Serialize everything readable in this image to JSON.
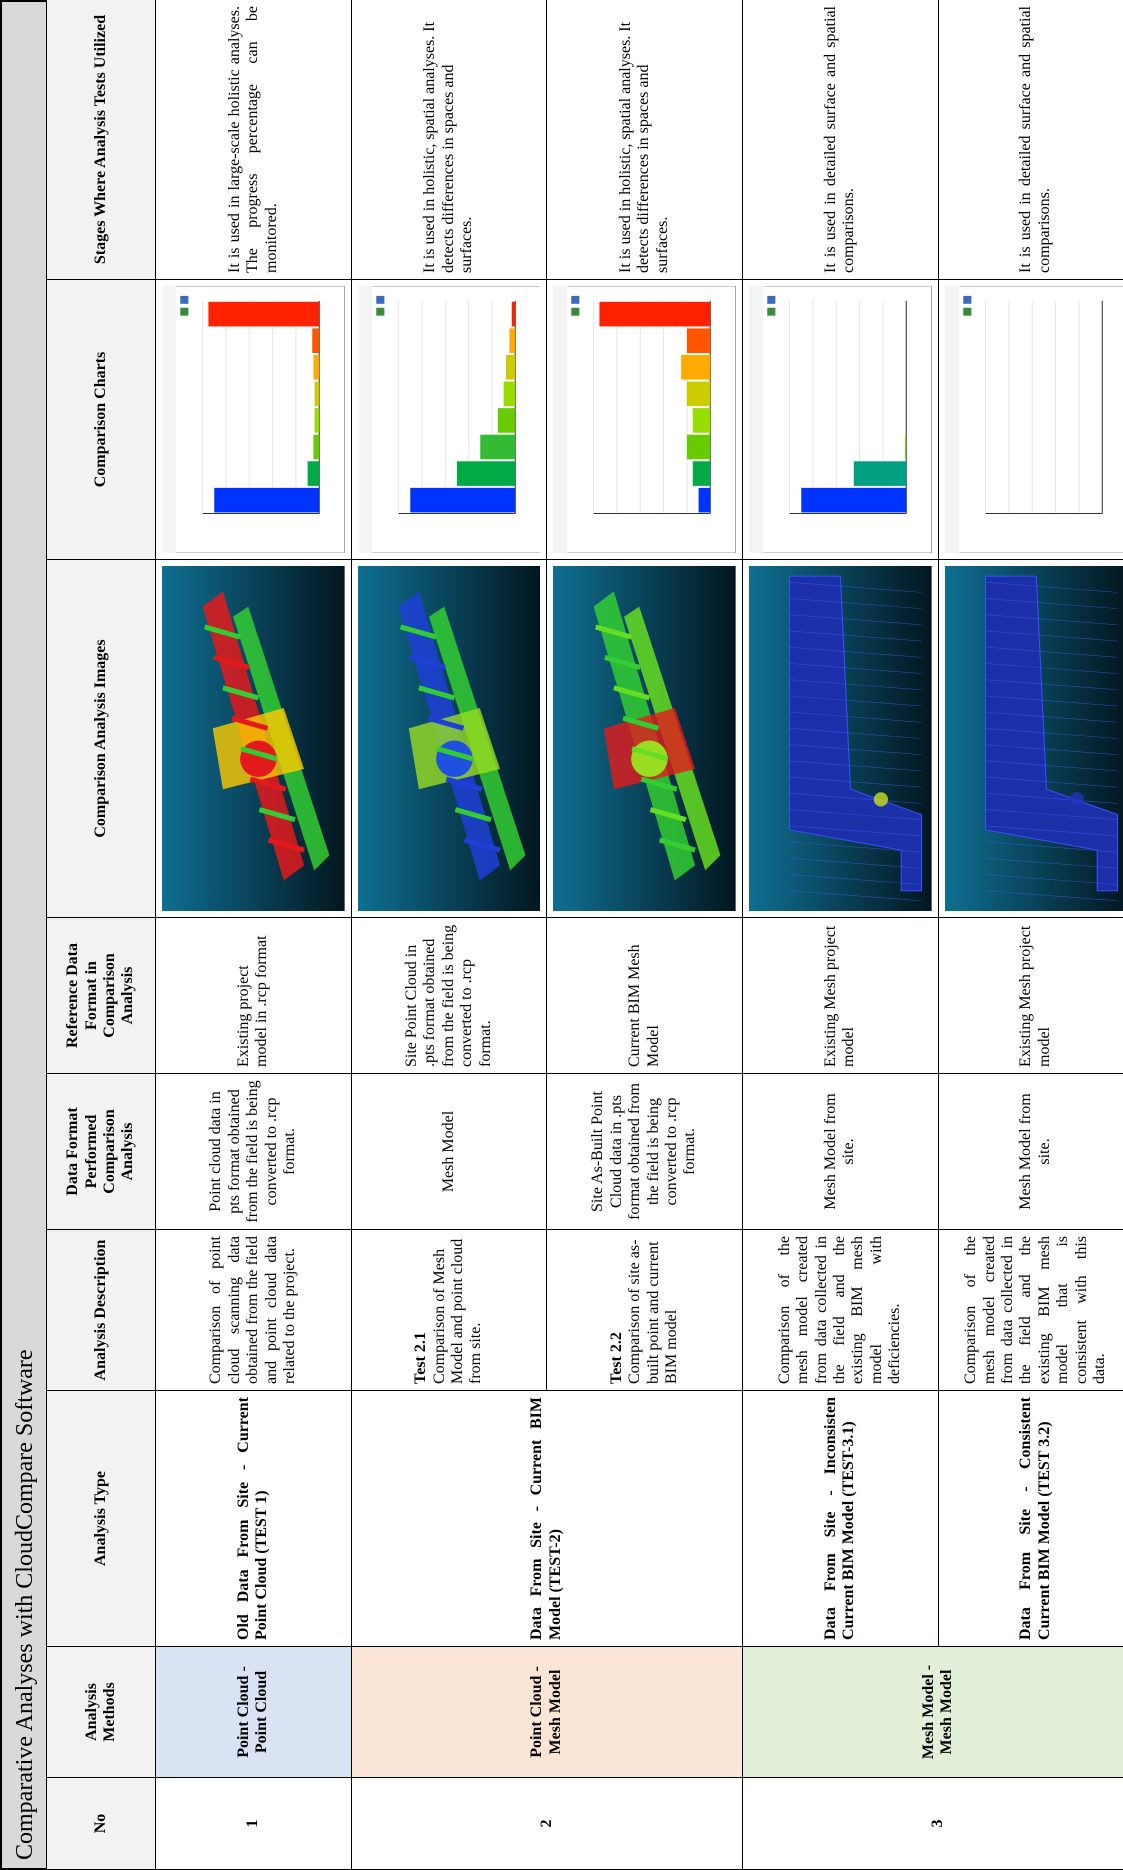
{
  "title": "Comparative Analyses with CloudCompare Software",
  "table": {
    "headers": [
      "No",
      "Analysis Methods",
      "Analysis Type",
      "Analysis Description",
      "Data Format Performed Comparison Analysis",
      "Reference Data Format in Comparison Analysis",
      "Comparison Analysis Images",
      "Comparison Charts",
      "Stages Where Analysis Tests Utilized"
    ],
    "rows": [
      {
        "no": "1",
        "method": "Point Cloud - Point Cloud",
        "parts": [
          {
            "type": "Old Data From Site - Current Point Cloud (TEST 1)",
            "description": "Comparison of point cloud scanning data obtained from the field and point cloud data related to the project.",
            "data_format": "Point cloud data in pts format obtained from the field is being converted to .rcp format.",
            "reference_format": "Existing project model in .rcp format",
            "stages": "It is used in large-scale holistic analyses. The progress percentage can be monitored."
          }
        ]
      },
      {
        "no": "2",
        "method": "Point Cloud - Mesh Model",
        "type": "Data From Site - Current BIM Model (TEST-2)",
        "parts": [
          {
            "test": "Test 2.1",
            "description": "Comparison of Mesh Model and point cloud from site.",
            "data_format": "Mesh Model",
            "reference_format": "Site Point Cloud in .pts format obtained from the field is being converted to .rcp format.",
            "stages": "It is used in holistic, spatial analyses. It detects differences in spaces and surfaces."
          },
          {
            "test": "Test 2.2",
            "description": "Comparison of site as-built point and current BIM model",
            "data_format": "Site As-Built Point Cloud data in .pts format obtained from the field is being converted to .rcp format.",
            "reference_format": "Current BIM Mesh Model",
            "stages": "It is used in holistic, spatial analyses. It detects differences in spaces and surfaces."
          }
        ]
      },
      {
        "no": "3",
        "method": "Mesh Model - Mesh Model",
        "parts": [
          {
            "type": "Data From Site - Inconsisten Current BIM Model (TEST-3.1)",
            "description": "Comparison of the mesh model created from data collected in the field and the existing BIM mesh model with deficiencies.",
            "data_format": "Mesh Model from site.",
            "reference_format": "Existing Mesh project model",
            "stages": "It is used in detailed surface and spatial comparisons."
          },
          {
            "type": "Data From Site - Consistent Current BIM Model (TEST 3.2)",
            "description": "Comparison of the mesh model created from data collected in the field and the existing BIM mesh model that is consistent with this data.",
            "data_format": "Mesh Model from site.",
            "reference_format": "Existing Mesh project model",
            "stages": "It is used in detailed surface and spatial comparisons."
          }
        ]
      }
    ]
  }
}
